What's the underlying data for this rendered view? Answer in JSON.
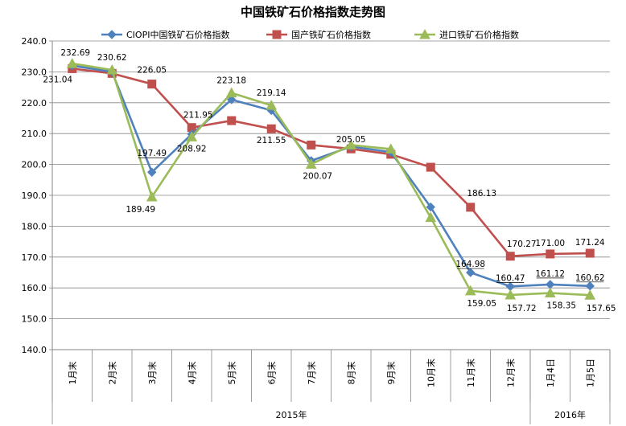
{
  "chart_data": {
    "type": "line",
    "title": "中国铁矿石价格指数走势图",
    "categories": [
      "1月末",
      "2月末",
      "3月末",
      "4月末",
      "5月末",
      "6月末",
      "7月末",
      "8月末",
      "9月末",
      "10月末",
      "11月末",
      "12月末",
      "1月4日",
      "1月5日"
    ],
    "category_groups": [
      {
        "label": "2015年",
        "from": 0,
        "to": 11
      },
      {
        "label": "2016年",
        "from": 12,
        "to": 13
      }
    ],
    "ylim": [
      140,
      240
    ],
    "yticks": [
      "140.0",
      "150.0",
      "160.0",
      "170.0",
      "180.0",
      "190.0",
      "200.0",
      "210.0",
      "220.0",
      "230.0",
      "240.0"
    ],
    "grid": true,
    "legend_position": "top",
    "series": [
      {
        "name": "CIOPI中国铁矿石价格指数",
        "color": "#4F81BD",
        "marker": "diamond",
        "values": [
          232.0,
          230.0,
          197.49,
          209.8,
          221.0,
          217.5,
          201.2,
          205.8,
          204.0,
          186.2,
          164.98,
          160.47,
          161.12,
          160.62
        ],
        "labels": [
          null,
          null,
          "197.49",
          null,
          null,
          null,
          null,
          null,
          null,
          null,
          "164.98",
          "160.47",
          "161.12",
          "160.62"
        ]
      },
      {
        "name": "国产铁矿石价格指数",
        "color": "#C0504D",
        "marker": "square",
        "values": [
          231.04,
          229.5,
          226.05,
          211.95,
          214.2,
          211.55,
          206.3,
          205.05,
          203.3,
          199.1,
          186.13,
          170.27,
          171.0,
          171.24
        ],
        "labels": [
          "231.04",
          null,
          "226.05",
          "211.95",
          null,
          "211.55",
          null,
          "205.05",
          null,
          null,
          "186.13",
          "170.27",
          "171.00",
          "171.24"
        ]
      },
      {
        "name": "进口铁矿石价格指数",
        "color": "#9BBB59",
        "marker": "triangle",
        "values": [
          232.69,
          230.62,
          189.49,
          208.92,
          223.18,
          219.14,
          200.07,
          206.3,
          205.0,
          182.8,
          159.05,
          157.72,
          158.35,
          157.65
        ],
        "labels": [
          "232.69",
          "230.62",
          "189.49",
          "208.92",
          "223.18",
          "219.14",
          "200.07",
          null,
          null,
          null,
          "159.05",
          "157.72",
          "158.35",
          "157.65"
        ]
      }
    ]
  }
}
